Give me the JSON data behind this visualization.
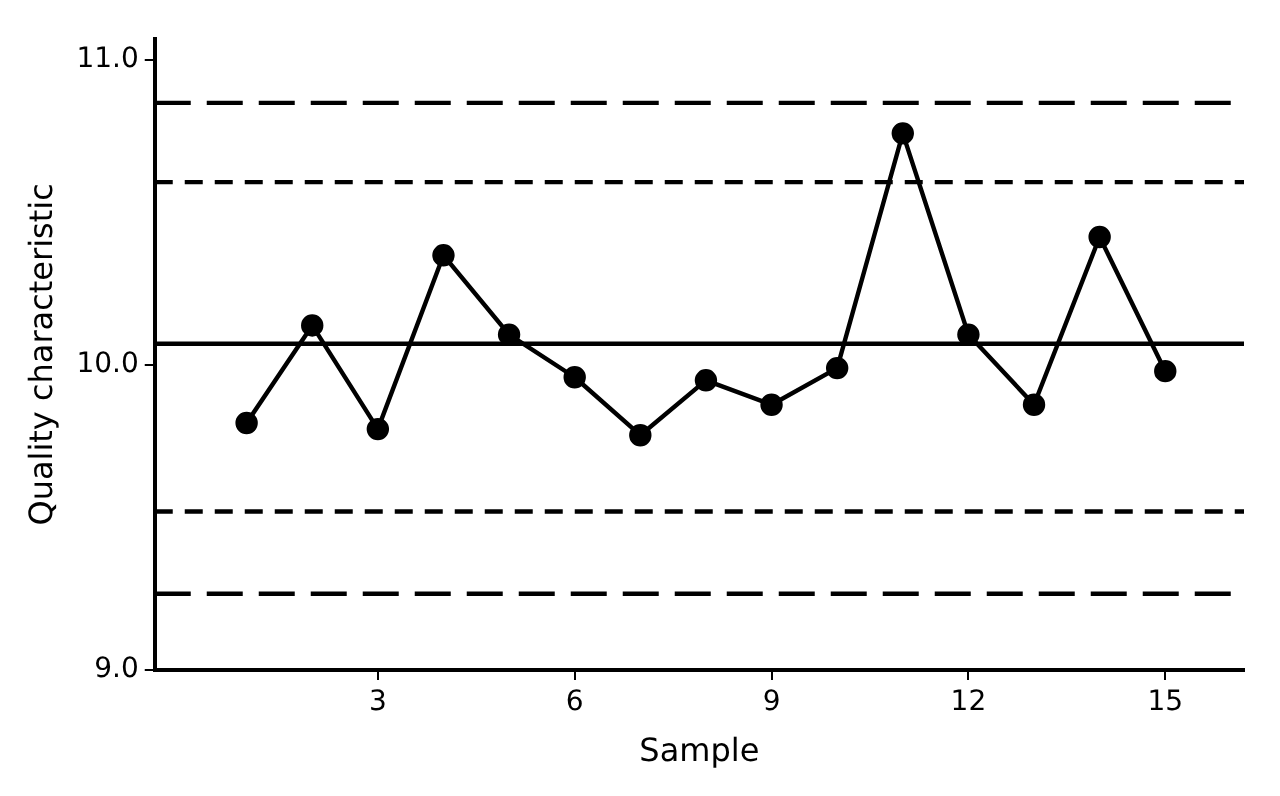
{
  "chart_data": {
    "type": "line",
    "xlabel": "Sample",
    "ylabel": "Quality characteristic",
    "x": [
      1,
      2,
      3,
      4,
      5,
      6,
      7,
      8,
      9,
      10,
      11,
      12,
      13,
      14,
      15
    ],
    "series": [
      {
        "color": "#000000",
        "values": [
          9.81,
          10.13,
          9.79,
          10.36,
          10.1,
          9.96,
          9.77,
          9.95,
          9.87,
          9.99,
          10.76,
          10.1,
          9.87,
          10.42,
          9.98
        ]
      }
    ],
    "marker": "circle",
    "line_style": "solid",
    "grid": false,
    "legend": false,
    "xlim": [
      -0.4,
      16.2
    ],
    "xticks": [
      3,
      6,
      9,
      12,
      15
    ],
    "ylim": [
      9,
      11.07
    ],
    "yticks": [
      {
        "value": 9,
        "label": "9.0"
      },
      {
        "value": 10,
        "label": "10.0"
      },
      {
        "value": 11,
        "label": "11.0"
      }
    ],
    "ref_lines": [
      {
        "axis": "y",
        "value": 10.86,
        "color": "#000000",
        "line_style": "dashed"
      },
      {
        "axis": "y",
        "value": 10.6,
        "color": "#000000",
        "line_style": "dashed"
      },
      {
        "axis": "y",
        "value": 10.07,
        "color": "#000000",
        "line_style": "solid"
      },
      {
        "axis": "y",
        "value": 9.52,
        "color": "#000000",
        "line_style": "dashed"
      },
      {
        "axis": "y",
        "value": 9.25,
        "color": "#000000",
        "line_style": "dashed"
      }
    ]
  }
}
